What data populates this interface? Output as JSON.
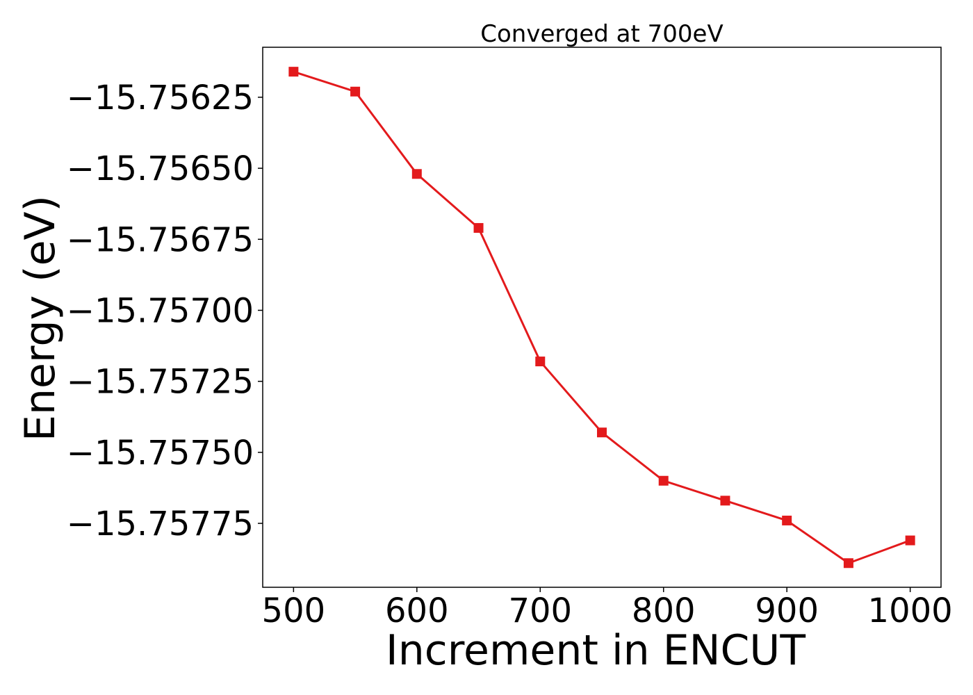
{
  "chart_data": {
    "type": "line",
    "title": "Converged at 700eV",
    "xlabel": "Increment in ENCUT",
    "ylabel": "Energy (eV)",
    "x": [
      500,
      550,
      600,
      650,
      700,
      750,
      800,
      850,
      900,
      950,
      1000
    ],
    "series": [
      {
        "name": "Energy",
        "color": "#e31a1c",
        "marker": "square",
        "values": [
          -15.75616,
          -15.75623,
          -15.75652,
          -15.75671,
          -15.75718,
          -15.75743,
          -15.7576,
          -15.75767,
          -15.75774,
          -15.75789,
          -15.75781
        ]
      }
    ],
    "xticks": [
      500,
      600,
      700,
      800,
      900,
      1000
    ],
    "xtick_labels": [
      "500",
      "600",
      "700",
      "800",
      "900",
      "1000"
    ],
    "yticks": [
      -15.75625,
      -15.7565,
      -15.75675,
      -15.757,
      -15.75725,
      -15.7575,
      -15.75775
    ],
    "ytick_labels": [
      "−15.75625",
      "−15.75650",
      "−15.75675",
      "−15.75700",
      "−15.75725",
      "−15.75750",
      "−15.75775"
    ],
    "xlim": [
      475,
      1025
    ],
    "ylim": [
      -15.757975,
      -15.756074
    ],
    "grid": false,
    "legend": "none"
  }
}
